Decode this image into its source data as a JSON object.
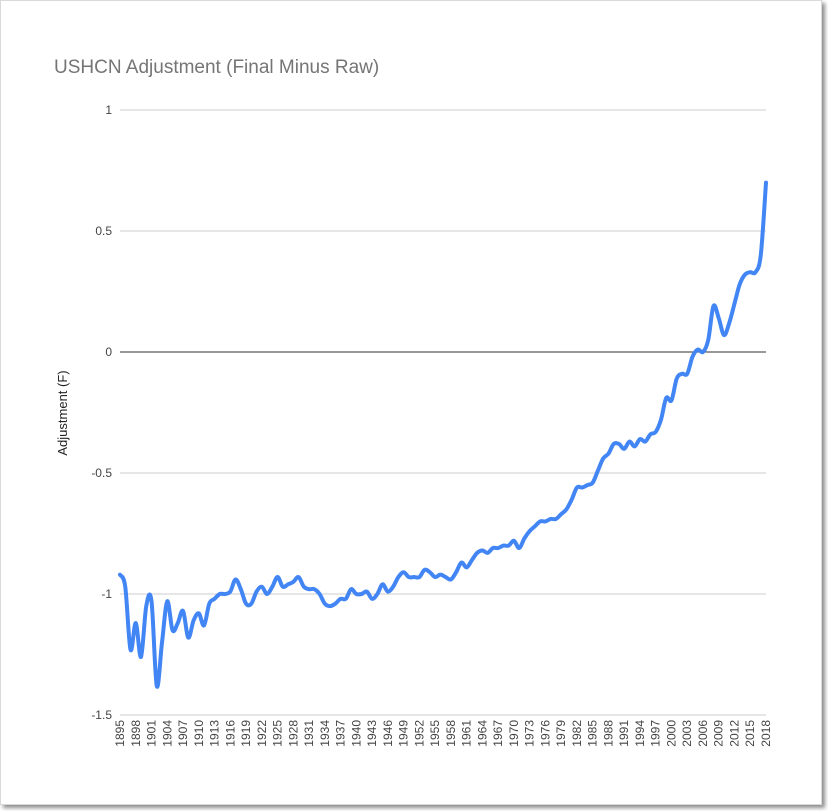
{
  "chart_data": {
    "type": "line",
    "title": "USHCN Adjustment (Final Minus Raw)",
    "xlabel": "",
    "ylabel": "Adjustment (F)",
    "ylim": [
      -1.5,
      1
    ],
    "yticks": [
      "1",
      "0.5",
      "0",
      "-0.5",
      "-1",
      "-1.5"
    ],
    "ytick_values": [
      1,
      0.5,
      0,
      -0.5,
      -1,
      -1.5
    ],
    "grid": true,
    "legend": "none",
    "line_color": "#4285f4",
    "zero_line_color": "#333333",
    "xticks": [
      "1895",
      "1898",
      "1901",
      "1904",
      "1907",
      "1910",
      "1913",
      "1916",
      "1919",
      "1922",
      "1925",
      "1928",
      "1931",
      "1934",
      "1937",
      "1940",
      "1943",
      "1946",
      "1949",
      "1952",
      "1955",
      "1958",
      "1961",
      "1964",
      "1967",
      "1970",
      "1973",
      "1976",
      "1979",
      "1982",
      "1985",
      "1988",
      "1991",
      "1994",
      "1997",
      "2000",
      "2003",
      "2006",
      "2009",
      "2012",
      "2015",
      "2018"
    ],
    "series": [
      {
        "x": [
          1895,
          1896,
          1897,
          1898,
          1899,
          1900,
          1901,
          1902,
          1903,
          1904,
          1905,
          1906,
          1907,
          1908,
          1909,
          1910,
          1911,
          1912,
          1913,
          1914,
          1915,
          1916,
          1917,
          1918,
          1919,
          1920,
          1921,
          1922,
          1923,
          1924,
          1925,
          1926,
          1927,
          1928,
          1929,
          1930,
          1931,
          1932,
          1933,
          1934,
          1935,
          1936,
          1937,
          1938,
          1939,
          1940,
          1941,
          1942,
          1943,
          1944,
          1945,
          1946,
          1947,
          1948,
          1949,
          1950,
          1951,
          1952,
          1953,
          1954,
          1955,
          1956,
          1957,
          1958,
          1959,
          1960,
          1961,
          1962,
          1963,
          1964,
          1965,
          1966,
          1967,
          1968,
          1969,
          1970,
          1971,
          1972,
          1973,
          1974,
          1975,
          1976,
          1977,
          1978,
          1979,
          1980,
          1981,
          1982,
          1983,
          1984,
          1985,
          1986,
          1987,
          1988,
          1989,
          1990,
          1991,
          1992,
          1993,
          1994,
          1995,
          1996,
          1997,
          1998,
          1999,
          2000,
          2001,
          2002,
          2003,
          2004,
          2005,
          2006,
          2007,
          2008,
          2009,
          2010,
          2011,
          2012,
          2013,
          2014,
          2015,
          2016,
          2017,
          2018
        ],
        "values": [
          -0.92,
          -0.97,
          -1.23,
          -1.12,
          -1.26,
          -1.05,
          -1.03,
          -1.38,
          -1.2,
          -1.03,
          -1.15,
          -1.12,
          -1.07,
          -1.18,
          -1.11,
          -1.08,
          -1.13,
          -1.04,
          -1.02,
          -1.0,
          -1.0,
          -0.99,
          -0.94,
          -0.98,
          -1.04,
          -1.04,
          -0.99,
          -0.97,
          -1.0,
          -0.97,
          -0.93,
          -0.97,
          -0.96,
          -0.95,
          -0.93,
          -0.97,
          -0.98,
          -0.98,
          -1.0,
          -1.04,
          -1.05,
          -1.04,
          -1.02,
          -1.02,
          -0.98,
          -1.0,
          -1.0,
          -0.99,
          -1.02,
          -1.0,
          -0.96,
          -0.99,
          -0.97,
          -0.93,
          -0.91,
          -0.93,
          -0.93,
          -0.93,
          -0.9,
          -0.91,
          -0.93,
          -0.92,
          -0.93,
          -0.94,
          -0.91,
          -0.87,
          -0.89,
          -0.86,
          -0.83,
          -0.82,
          -0.83,
          -0.81,
          -0.81,
          -0.8,
          -0.8,
          -0.78,
          -0.81,
          -0.77,
          -0.74,
          -0.72,
          -0.7,
          -0.7,
          -0.69,
          -0.69,
          -0.67,
          -0.65,
          -0.61,
          -0.56,
          -0.56,
          -0.55,
          -0.54,
          -0.49,
          -0.44,
          -0.42,
          -0.38,
          -0.38,
          -0.4,
          -0.37,
          -0.39,
          -0.36,
          -0.37,
          -0.34,
          -0.33,
          -0.28,
          -0.19,
          -0.2,
          -0.11,
          -0.09,
          -0.09,
          -0.02,
          0.01,
          0.0,
          0.05,
          0.19,
          0.14,
          0.07,
          0.12,
          0.2,
          0.28,
          0.32,
          0.33,
          0.33,
          0.4,
          0.7
        ]
      }
    ]
  }
}
